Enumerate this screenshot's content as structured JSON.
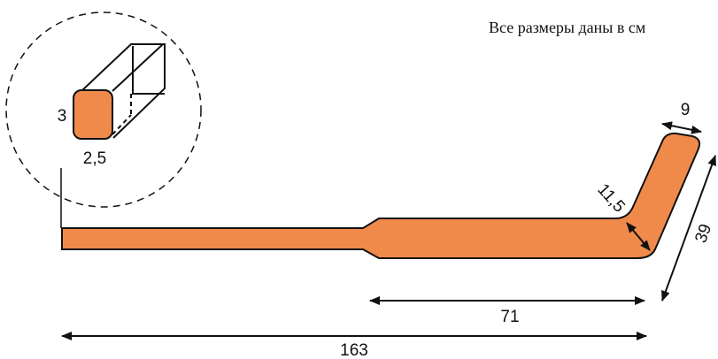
{
  "note": "Все размеры даны в см",
  "profile": {
    "height": "3",
    "width": "2,5"
  },
  "dimensions": {
    "blade_width": "9",
    "blade_length": "39",
    "heel": "11,5",
    "lower_part": "71",
    "total_length": "163"
  }
}
